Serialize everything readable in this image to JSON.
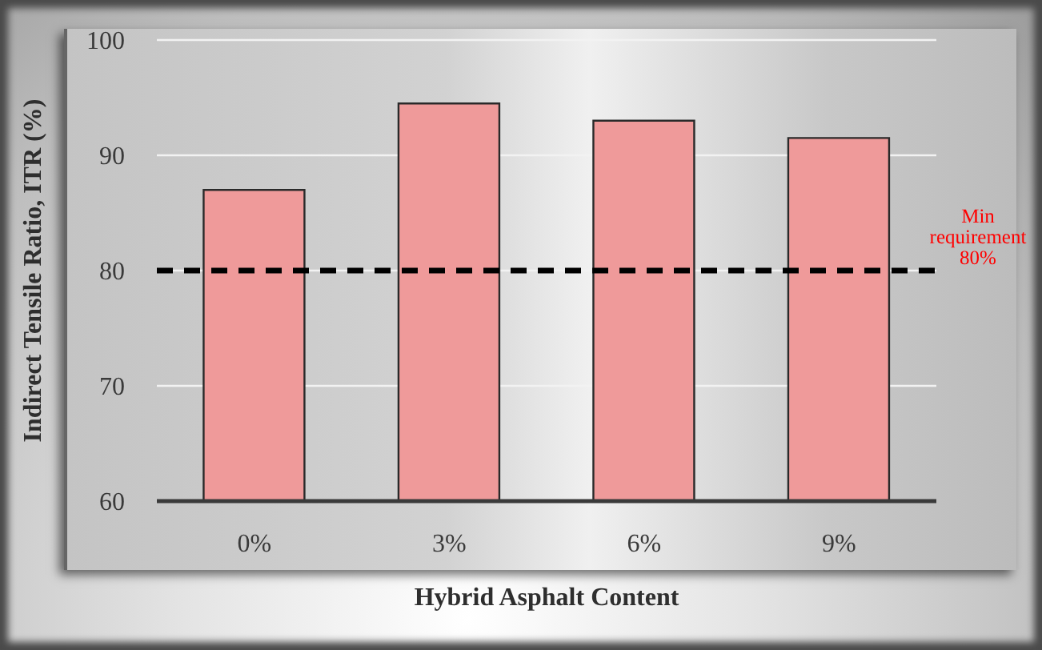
{
  "chart_data": {
    "type": "bar",
    "categories": [
      "0%",
      "3%",
      "6%",
      "9%"
    ],
    "values": [
      87,
      94.5,
      93,
      91.5
    ],
    "color": "#ef9a9a",
    "xlabel": "Hybrid Asphalt Content",
    "ylabel": "Indirect Tensile Ratio, ITR (%)",
    "ylim": [
      60,
      100
    ],
    "yticks": [
      60,
      70,
      80,
      90,
      100
    ],
    "grid": "y",
    "ref_lines": [
      {
        "axis": "y",
        "value": 80,
        "label": "Min requirement 80%",
        "color": "#000000",
        "line_style": "dashed"
      }
    ]
  }
}
